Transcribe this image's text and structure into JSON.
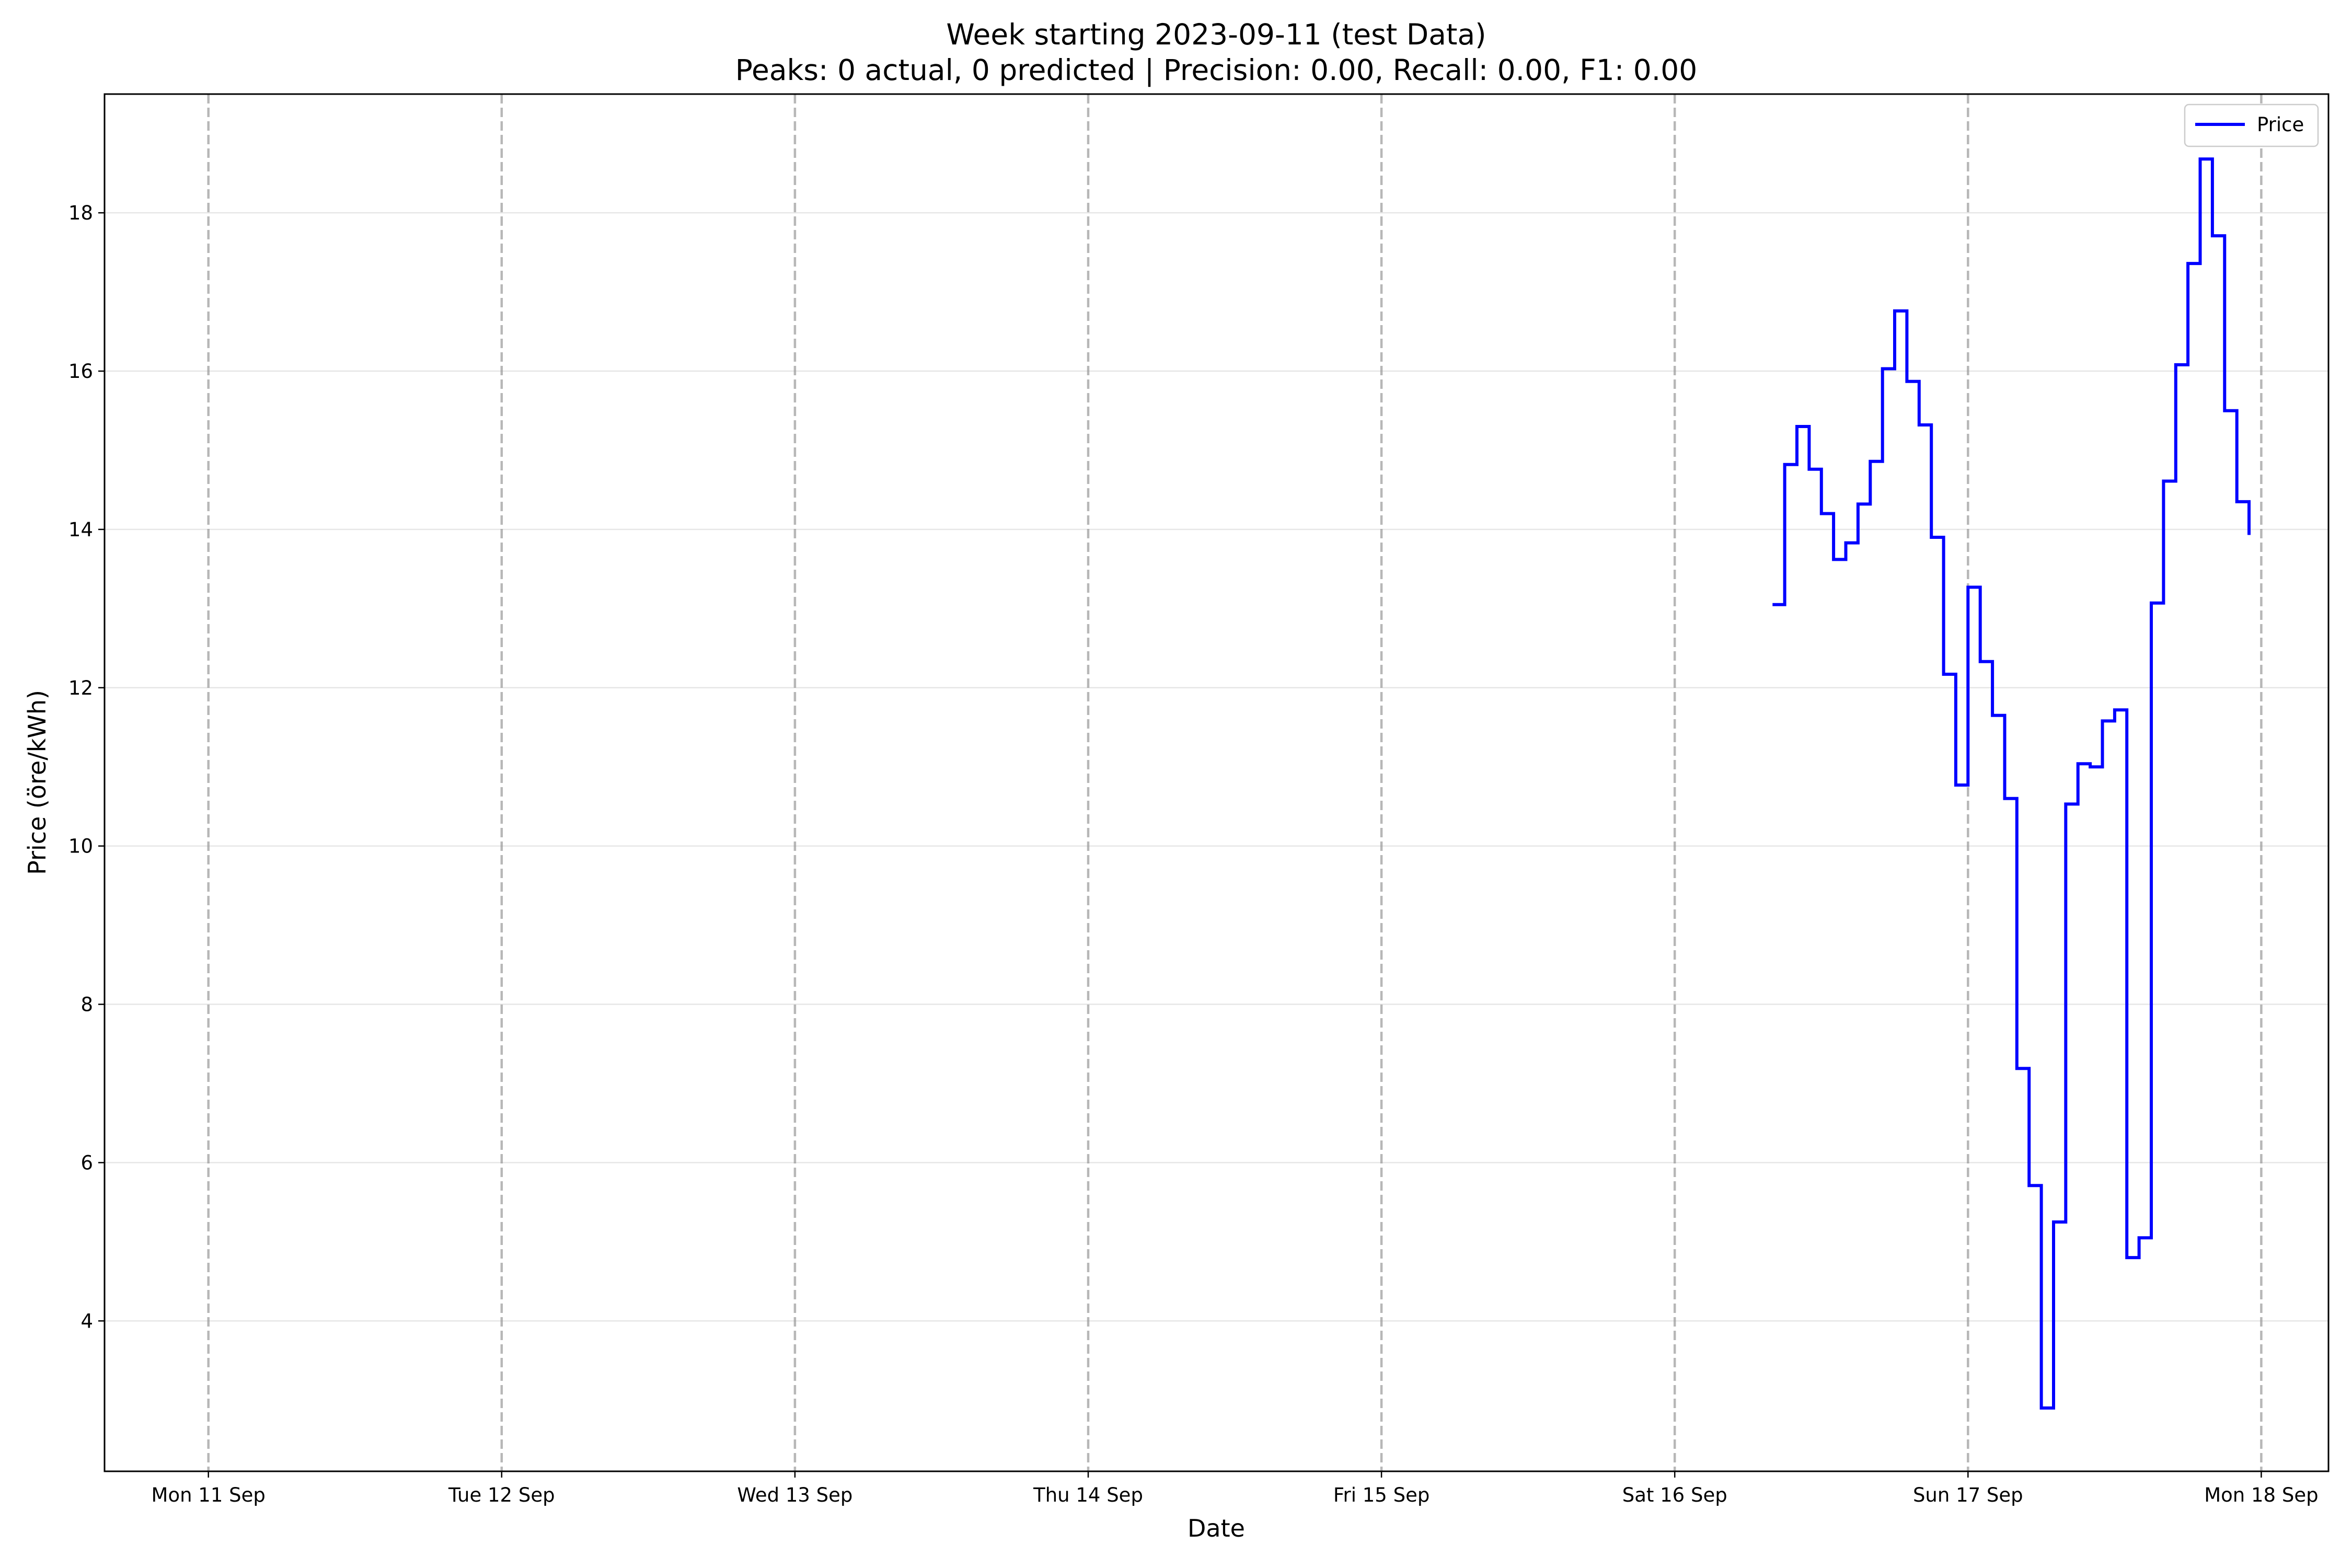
{
  "chart_data": {
    "type": "line",
    "step": true,
    "title": "Week starting 2023-09-11 (test Data)",
    "subtitle": "Peaks: 0 actual, 0 predicted | Precision: 0.00, Recall: 0.00, F1: 0.00",
    "xlabel": "Date",
    "ylabel": "Price (öre/kWh)",
    "xlim": [
      "2023-09-10T15:30",
      "2023-09-18T05:30"
    ],
    "ylim": [
      2.1,
      19.5
    ],
    "yticks": [
      4,
      6,
      8,
      10,
      12,
      14,
      16,
      18
    ],
    "xticks": [
      {
        "date": "2023-09-11",
        "label": "Mon 11 Sep"
      },
      {
        "date": "2023-09-12",
        "label": "Tue 12 Sep"
      },
      {
        "date": "2023-09-13",
        "label": "Wed 13 Sep"
      },
      {
        "date": "2023-09-14",
        "label": "Thu 14 Sep"
      },
      {
        "date": "2023-09-15",
        "label": "Fri 15 Sep"
      },
      {
        "date": "2023-09-16",
        "label": "Sat 16 Sep"
      },
      {
        "date": "2023-09-17",
        "label": "Sun 17 Sep"
      },
      {
        "date": "2023-09-18",
        "label": "Mon 18 Sep"
      }
    ],
    "day_markers": [
      "2023-09-11",
      "2023-09-12",
      "2023-09-13",
      "2023-09-14",
      "2023-09-15",
      "2023-09-16",
      "2023-09-17",
      "2023-09-18"
    ],
    "grid": {
      "horizontal": true,
      "vertical": false
    },
    "legend": {
      "position": "top-right"
    },
    "series": [
      {
        "name": "Price",
        "color": "#0000ff",
        "x": [
          "2023-09-16T08:00",
          "2023-09-16T09:00",
          "2023-09-16T10:00",
          "2023-09-16T11:00",
          "2023-09-16T12:00",
          "2023-09-16T13:00",
          "2023-09-16T14:00",
          "2023-09-16T15:00",
          "2023-09-16T16:00",
          "2023-09-16T17:00",
          "2023-09-16T18:00",
          "2023-09-16T19:00",
          "2023-09-16T20:00",
          "2023-09-16T21:00",
          "2023-09-16T22:00",
          "2023-09-16T23:00",
          "2023-09-17T00:00",
          "2023-09-17T01:00",
          "2023-09-17T02:00",
          "2023-09-17T03:00",
          "2023-09-17T04:00",
          "2023-09-17T05:00",
          "2023-09-17T06:00",
          "2023-09-17T07:00",
          "2023-09-17T08:00",
          "2023-09-17T09:00",
          "2023-09-17T10:00",
          "2023-09-17T11:00",
          "2023-09-17T12:00",
          "2023-09-17T13:00",
          "2023-09-17T14:00",
          "2023-09-17T15:00",
          "2023-09-17T16:00",
          "2023-09-17T17:00",
          "2023-09-17T18:00",
          "2023-09-17T19:00",
          "2023-09-17T20:00",
          "2023-09-17T21:00",
          "2023-09-17T22:00",
          "2023-09-17T23:00"
        ],
        "y": [
          13.05,
          14.82,
          15.3,
          14.76,
          14.2,
          13.62,
          13.83,
          14.32,
          14.86,
          16.03,
          16.76,
          15.87,
          15.32,
          13.9,
          12.17,
          10.77,
          13.27,
          12.33,
          11.65,
          10.6,
          7.19,
          5.71,
          2.9,
          5.25,
          10.53,
          11.04,
          11.0,
          11.58,
          11.72,
          4.8,
          5.05,
          13.07,
          14.61,
          16.08,
          17.36,
          18.68,
          17.71,
          15.5,
          14.35,
          13.93
        ]
      }
    ]
  }
}
